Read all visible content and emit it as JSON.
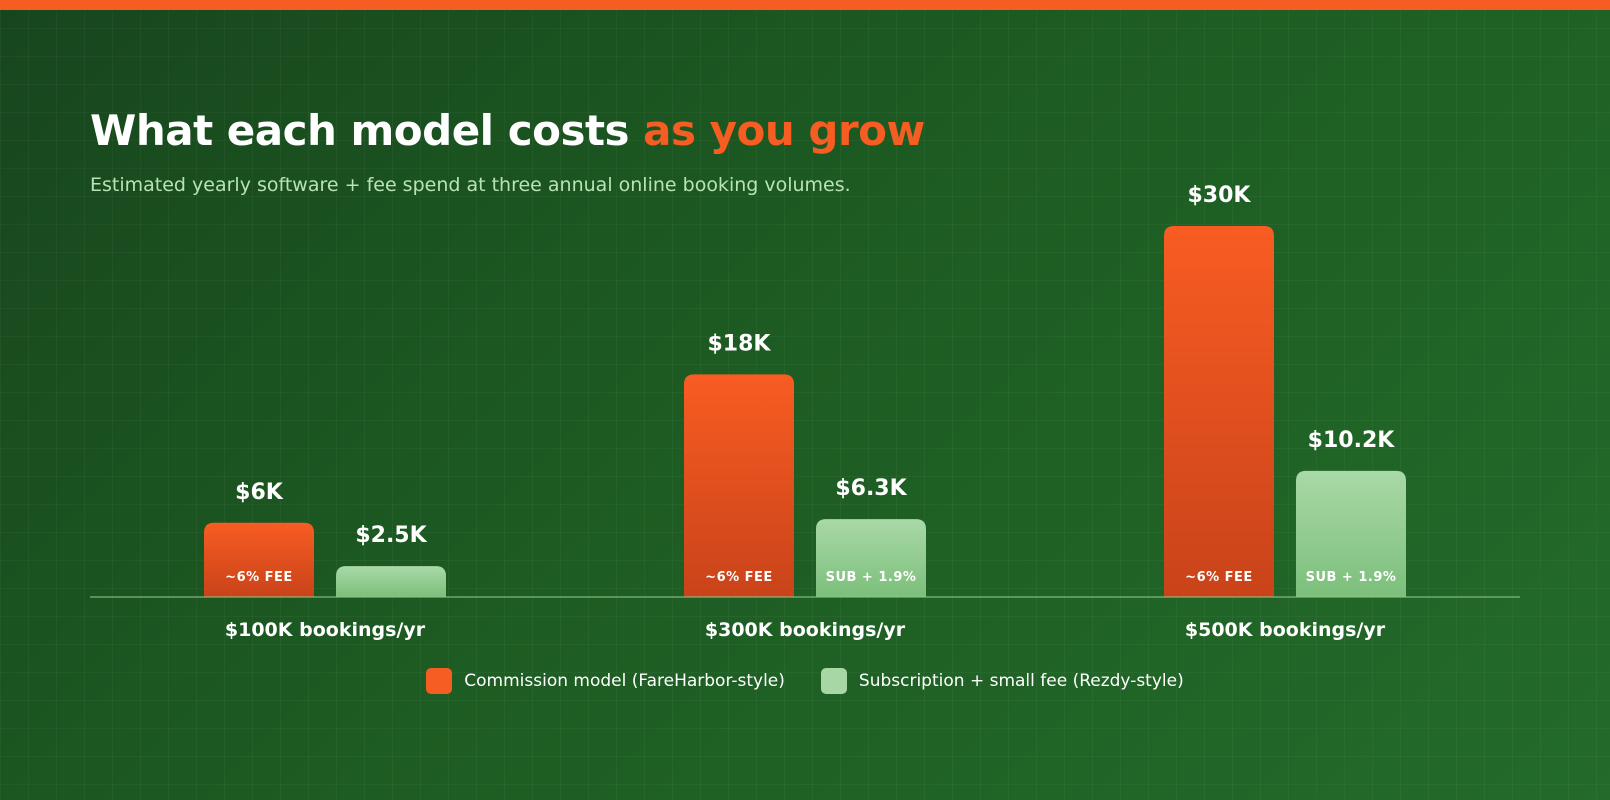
{
  "header": {
    "title_main": "What each model costs",
    "title_accent": "as you grow",
    "subtitle": "Estimated yearly software + fee spend at three annual online booking volumes."
  },
  "colors": {
    "accent": "#f65d23",
    "commission": "#f65d23",
    "subscription": "#a6d7a4",
    "background": "#1d5b22"
  },
  "chart_data": {
    "type": "bar",
    "title": "What each model costs as you grow",
    "subtitle": "Estimated yearly software + fee spend at three annual online booking volumes.",
    "categories": [
      "$100K bookings/yr",
      "$300K bookings/yr",
      "$500K bookings/yr"
    ],
    "series": [
      {
        "name": "Commission model (FareHarbor-style)",
        "values": [
          6,
          18,
          30
        ],
        "value_labels": [
          "$6K",
          "$18K",
          "$30K"
        ],
        "bar_tags": [
          "~6% FEE",
          "~6% FEE",
          "~6% FEE"
        ],
        "color": "#f65d23"
      },
      {
        "name": "Subscription + small fee (Rezdy-style)",
        "values": [
          2.5,
          6.3,
          10.2
        ],
        "value_labels": [
          "$2.5K",
          "$6.3K",
          "$10.2K"
        ],
        "bar_tags": [
          "",
          "SUB + 1.9%",
          "SUB + 1.9%"
        ],
        "color": "#a6d7a4"
      }
    ],
    "ylim": [
      0,
      30
    ],
    "xlabel": "",
    "ylabel": "",
    "grid": false,
    "legend_position": "bottom-center"
  }
}
